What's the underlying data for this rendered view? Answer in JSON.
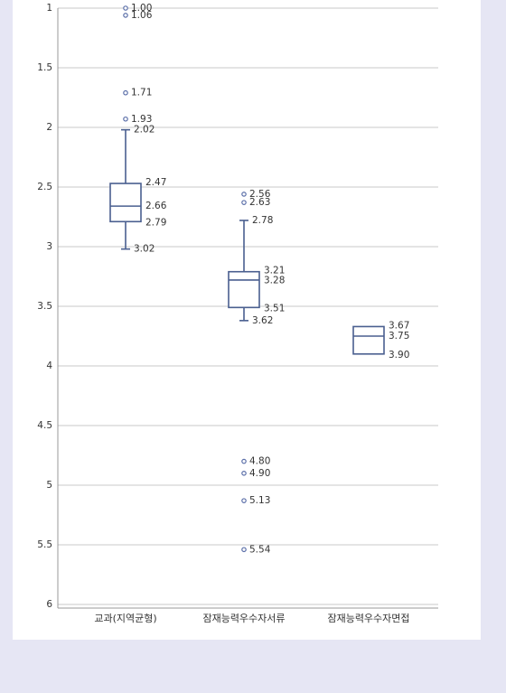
{
  "chart_data": {
    "type": "box",
    "y_axis": {
      "min": 1,
      "max": 6,
      "inverted": true,
      "ticks": [
        "1",
        "1.5",
        "2",
        "2.5",
        "3",
        "3.5",
        "4",
        "4.5",
        "5",
        "5.5",
        "6"
      ],
      "tick_values": [
        1,
        1.5,
        2,
        2.5,
        3,
        3.5,
        4,
        4.5,
        5,
        5.5,
        6
      ]
    },
    "grid": "horizontal",
    "categories": [
      "교과(지역균형)",
      "잠재능력우수자서류",
      "잠재능력우수자면접"
    ],
    "boxes": [
      {
        "category": "교과(지역균형)",
        "whisker_low": 2.02,
        "q1": 2.47,
        "median": 2.66,
        "q3": 2.79,
        "whisker_high": 3.02,
        "outliers": [
          1.0,
          1.06,
          1.71,
          1.93
        ],
        "labels": {
          "whisker_low": "2.02",
          "q1": "2.47",
          "median": "2.66",
          "q3": "2.79",
          "whisker_high": "3.02"
        },
        "outlier_labels": [
          "1.00",
          "1.06",
          "1.71",
          "1.93"
        ]
      },
      {
        "category": "잠재능력우수자서류",
        "whisker_low": 2.78,
        "q1": 3.21,
        "median": 3.28,
        "q3": 3.51,
        "whisker_high": 3.62,
        "outliers": [
          2.56,
          2.63,
          4.8,
          4.9,
          5.13,
          5.54
        ],
        "labels": {
          "whisker_low": "2.78",
          "q1": "3.21",
          "median": "3.28",
          "q3": "3.51",
          "whisker_high": "3.62"
        },
        "outlier_labels": [
          "2.56",
          "2.63",
          "4.80",
          "4.90",
          "5.13",
          "5.54"
        ]
      },
      {
        "category": "잠재능력우수자면접",
        "whisker_low": null,
        "q1": 3.67,
        "median": 3.75,
        "q3": 3.9,
        "whisker_high": null,
        "outliers": [],
        "labels": {
          "q1": "3.67",
          "median": "3.75",
          "q3": "3.90"
        },
        "outlier_labels": []
      }
    ],
    "colors": {
      "box": "#4a5f8f",
      "outlier": "#5a6ea8",
      "grid": "#c8c8c8",
      "axis": "#999999",
      "background": "#e6e6f4"
    }
  }
}
